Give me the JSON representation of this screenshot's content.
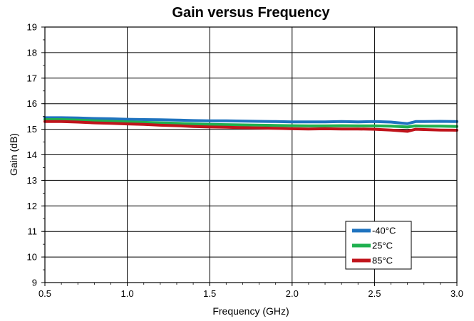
{
  "chart_data": {
    "type": "line",
    "title": "Gain versus Frequency",
    "xlabel": "Frequency (GHz)",
    "ylabel": "Gain (dB)",
    "xlim": [
      0.5,
      3.0
    ],
    "ylim": [
      9,
      19
    ],
    "xticks": [
      "0.5",
      "1.0",
      "1.5",
      "2.0",
      "2.5",
      "3.0"
    ],
    "yticks": [
      "9",
      "10",
      "11",
      "12",
      "13",
      "14",
      "15",
      "16",
      "17",
      "18",
      "19"
    ],
    "grid": true,
    "legend_position": "bottom-right",
    "x": [
      0.5,
      0.6,
      0.7,
      0.8,
      0.9,
      1.0,
      1.1,
      1.2,
      1.3,
      1.4,
      1.5,
      1.6,
      1.7,
      1.8,
      1.9,
      2.0,
      2.1,
      2.2,
      2.3,
      2.4,
      2.5,
      2.6,
      2.7,
      2.75,
      2.8,
      2.9,
      3.0
    ],
    "series": [
      {
        "name": "-40°C",
        "color": "#1f73bf",
        "values": [
          15.45,
          15.45,
          15.44,
          15.42,
          15.41,
          15.39,
          15.38,
          15.37,
          15.36,
          15.34,
          15.33,
          15.33,
          15.32,
          15.31,
          15.3,
          15.29,
          15.29,
          15.29,
          15.3,
          15.29,
          15.3,
          15.28,
          15.22,
          15.3,
          15.3,
          15.31,
          15.3
        ]
      },
      {
        "name": "25°C",
        "color": "#1fb04f",
        "values": [
          15.38,
          15.38,
          15.36,
          15.33,
          15.31,
          15.29,
          15.27,
          15.25,
          15.23,
          15.21,
          15.19,
          15.18,
          15.17,
          15.16,
          15.15,
          15.14,
          15.13,
          15.13,
          15.14,
          15.13,
          15.13,
          15.12,
          15.09,
          15.13,
          15.12,
          15.12,
          15.11
        ]
      },
      {
        "name": "85°C",
        "color": "#c0141b",
        "values": [
          15.3,
          15.3,
          15.28,
          15.25,
          15.23,
          15.21,
          15.19,
          15.16,
          15.14,
          15.11,
          15.09,
          15.08,
          15.06,
          15.05,
          15.04,
          15.02,
          15.01,
          15.02,
          15.01,
          15.01,
          15.0,
          14.97,
          14.92,
          15.0,
          14.99,
          14.97,
          14.96
        ]
      }
    ]
  }
}
